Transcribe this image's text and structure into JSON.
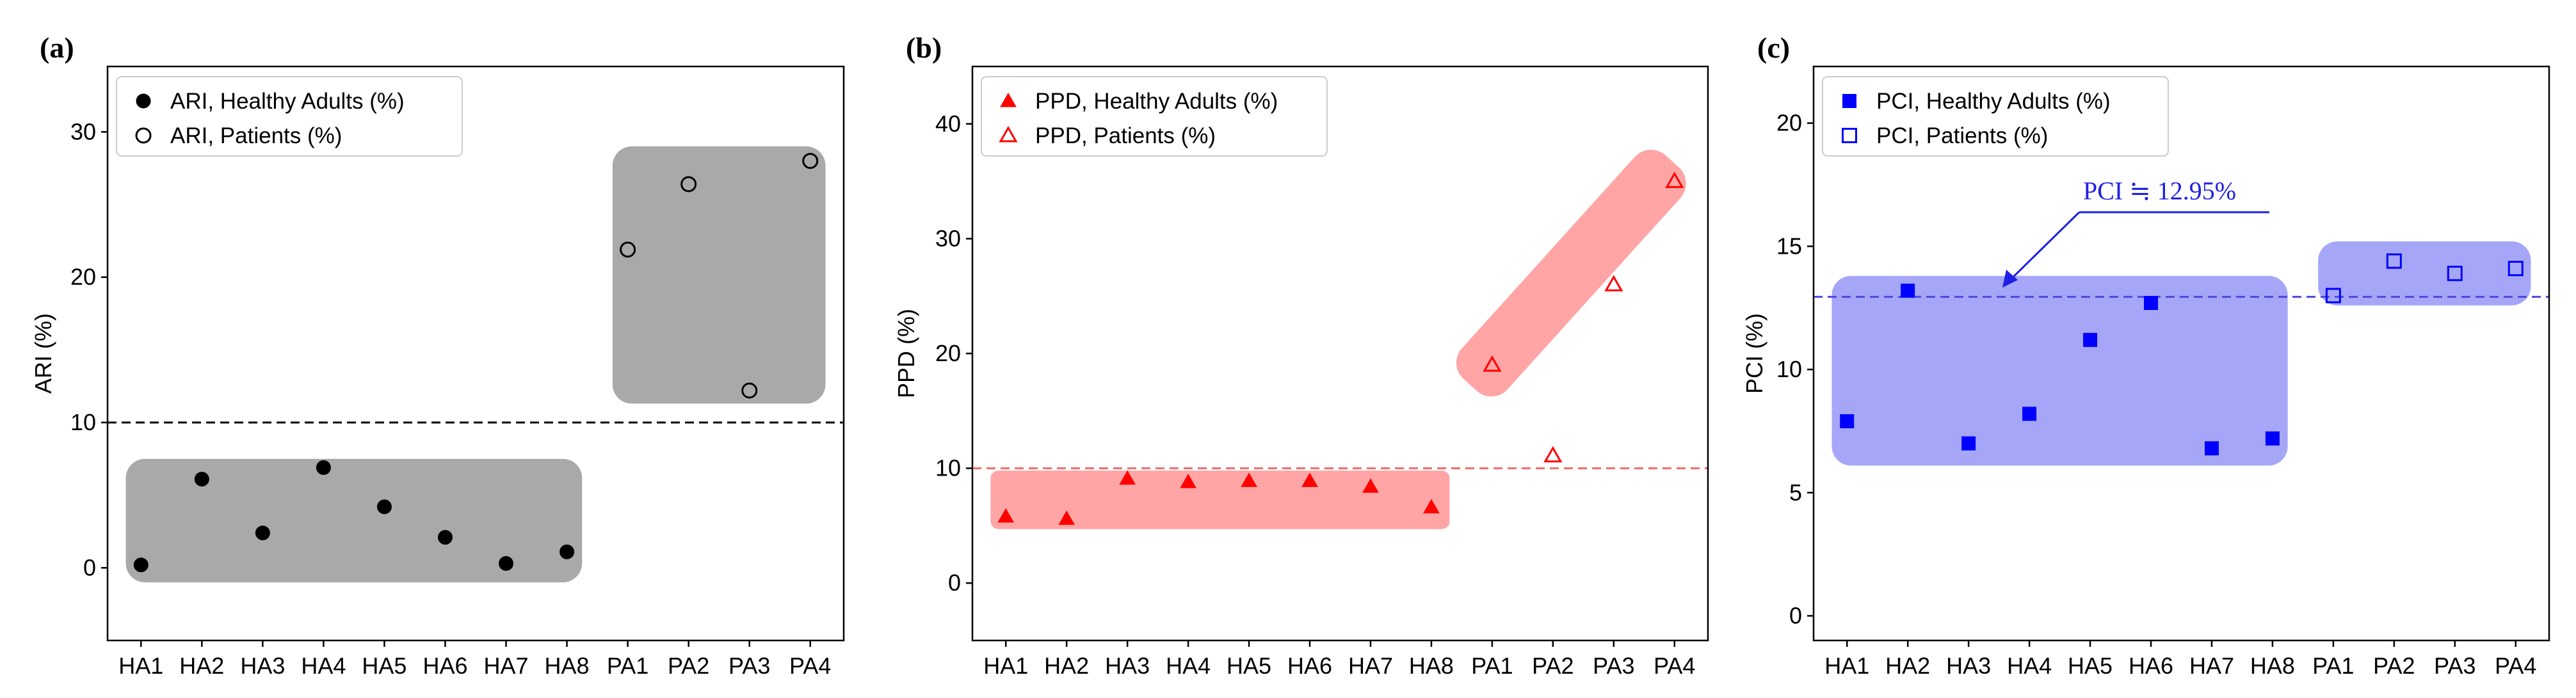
{
  "chart_data": [
    {
      "type": "scatter",
      "panel_label": "(a)",
      "ylabel": "ARI (%)",
      "categories": [
        "HA1",
        "HA2",
        "HA3",
        "HA4",
        "HA5",
        "HA6",
        "HA7",
        "HA8",
        "PA1",
        "PA2",
        "PA3",
        "PA4"
      ],
      "ylim": [
        -5,
        34.5
      ],
      "yticks": [
        "0",
        "10",
        "20",
        "30"
      ],
      "threshold": 10,
      "threshold_color": "#000000",
      "region_color": "#a9a9a9",
      "marker": "circle",
      "color": "#000000",
      "legend_position": "upper-left",
      "series": [
        {
          "name": "ARI, Healthy Adults (%)",
          "fill": "filled",
          "values": [
            0.2,
            6.1,
            2.4,
            6.9,
            4.2,
            2.1,
            0.3,
            1.1,
            null,
            null,
            null,
            null
          ]
        },
        {
          "name": "ARI, Patients (%)",
          "fill": "hollow",
          "values": [
            null,
            null,
            null,
            null,
            null,
            null,
            null,
            null,
            21.9,
            26.4,
            12.2,
            28.0
          ]
        }
      ]
    },
    {
      "type": "scatter",
      "panel_label": "(b)",
      "ylabel": "PPD (%)",
      "categories": [
        "HA1",
        "HA2",
        "HA3",
        "HA4",
        "HA5",
        "HA6",
        "HA7",
        "HA8",
        "PA1",
        "PA2",
        "PA3",
        "PA4"
      ],
      "ylim": [
        -5,
        45
      ],
      "yticks": [
        "0",
        "10",
        "20",
        "30",
        "40"
      ],
      "threshold": 10,
      "threshold_color": "#f26c6c",
      "region_color": "#ffa5a5",
      "marker": "triangle",
      "color": "#ff0000",
      "legend_position": "upper-left",
      "series": [
        {
          "name": "PPD, Healthy Adults (%)",
          "fill": "filled",
          "values": [
            5.8,
            5.6,
            9.1,
            8.8,
            8.9,
            8.9,
            8.4,
            6.6,
            null,
            null,
            null,
            null
          ]
        },
        {
          "name": "PPD, Patients (%)",
          "fill": "hollow",
          "values": [
            null,
            null,
            null,
            null,
            null,
            null,
            null,
            null,
            19.0,
            11.1,
            26.0,
            35.0
          ]
        }
      ]
    },
    {
      "type": "scatter",
      "panel_label": "(c)",
      "ylabel": "PCI (%)",
      "categories": [
        "HA1",
        "HA2",
        "HA3",
        "HA4",
        "HA5",
        "HA6",
        "HA7",
        "HA8",
        "PA1",
        "PA2",
        "PA3",
        "PA4"
      ],
      "ylim": [
        -1,
        22.3
      ],
      "yticks": [
        "0",
        "5",
        "10",
        "15",
        "20"
      ],
      "threshold": 12.95,
      "threshold_color": "#4a4ae0",
      "region_color": "#a6a6f8",
      "marker": "square",
      "color": "#0000ff",
      "legend_position": "upper-left",
      "annotation": "PCI ≒ 12.95%",
      "series": [
        {
          "name": "PCI, Healthy Adults (%)",
          "fill": "filled",
          "values": [
            7.9,
            13.2,
            7.0,
            8.2,
            11.2,
            12.7,
            6.8,
            7.2,
            null,
            null,
            null,
            null
          ]
        },
        {
          "name": "PCI, Patients (%)",
          "fill": "hollow",
          "values": [
            null,
            null,
            null,
            null,
            null,
            null,
            null,
            null,
            13.0,
            14.4,
            13.9,
            14.1
          ]
        }
      ]
    }
  ]
}
